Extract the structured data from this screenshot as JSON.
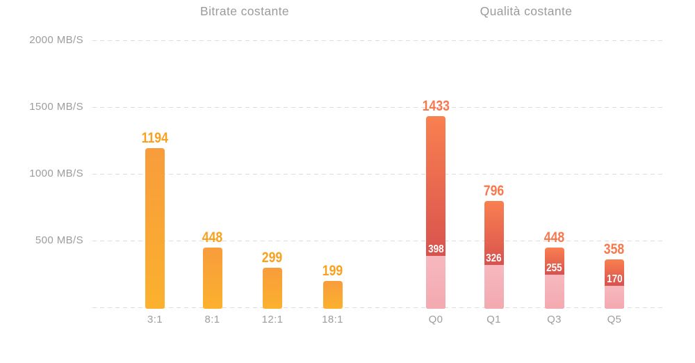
{
  "chart_data": {
    "type": "bar",
    "unit": "MB/S",
    "ylim": [
      0,
      2000
    ],
    "grid": "horizontal dashed",
    "y_ticks": [
      "2000 MB/S",
      "1500 MB/S",
      "1000 MB/S",
      "500 MB/S"
    ],
    "y_tick_values": [
      2000,
      1500,
      1000,
      500
    ],
    "groups": [
      {
        "title": "Bitrate costante",
        "style": "amber",
        "categories": [
          "3:1",
          "8:1",
          "12:1",
          "18:1"
        ],
        "values": [
          1194,
          448,
          299,
          199
        ]
      },
      {
        "title": "Qualità costante",
        "style": "coral",
        "categories": [
          "Q0",
          "Q1",
          "Q3",
          "Q5"
        ],
        "values": [
          1433,
          796,
          448,
          358
        ],
        "sub_values": [
          398,
          326,
          255,
          170
        ],
        "sub_note": "lower pink segment value printed in white inside each bar"
      }
    ],
    "colors": {
      "amber_bar_top": "#F89C3C",
      "amber_bar_bottom": "#FBB12E",
      "amber_value_label": "#F9A11D",
      "coral_bar_top": "#F98050",
      "coral_bar_bottom": "#D9534E",
      "coral_value_label": "#F8784E",
      "pink_segment": "#F5B1B7",
      "inner_value_label": "#FFFFFF",
      "gridline": "#DCDCDC",
      "axis_text": "#9C9C9C",
      "title_text": "#9B9B9B"
    }
  }
}
